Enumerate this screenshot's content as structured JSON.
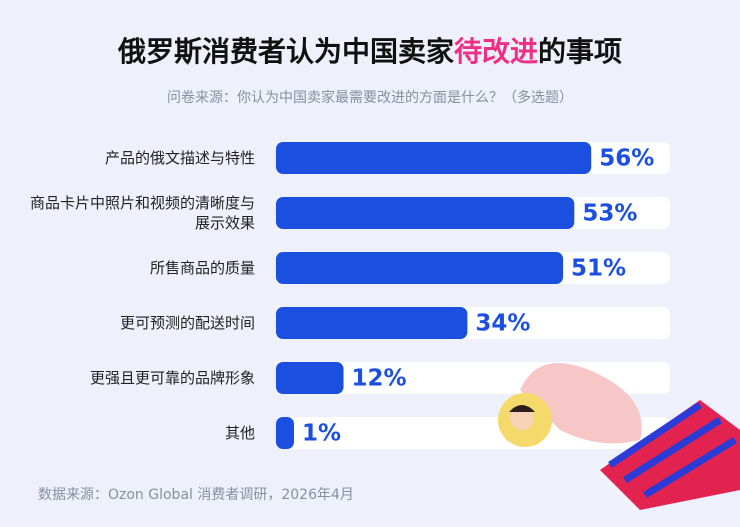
{
  "chart_data": {
    "type": "bar",
    "orientation": "horizontal",
    "title_parts": [
      "俄罗斯消费者认为中国卖家",
      "待改进",
      "的事项"
    ],
    "title_highlight_color": "#ef2f86",
    "subtitle": "问卷来源：你认为中国卖家最需要改进的方面是什么？（多选题）",
    "source": "数据来源：Ozon Global 消费者调研，2026年4月",
    "categories": [
      "产品的俄文描述与特性",
      "商品卡片中照片和视频的清晰度与展示效果",
      "所售商品的质量",
      "更可预测的配送时间",
      "更强且更可靠的品牌形象",
      "其他"
    ],
    "values": [
      56,
      53,
      51,
      34,
      12,
      1
    ],
    "value_labels": [
      "56%",
      "53%",
      "51%",
      "34%",
      "12%",
      "1%"
    ],
    "color": "#1a4fe0",
    "xlim": [
      0,
      70
    ]
  }
}
